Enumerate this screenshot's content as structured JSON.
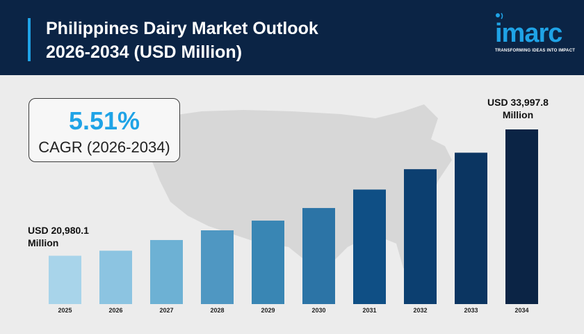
{
  "header": {
    "title_line1": "Philippines Dairy Market Outlook",
    "title_line2": "2026-2034 (USD Million)"
  },
  "logo": {
    "name": "imarc",
    "tagline": "TRANSFORMING IDEAS INTO IMPACT"
  },
  "cagr": {
    "value": "5.51%",
    "label": "CAGR (2026-2034)"
  },
  "annotations": {
    "first_line1": "USD 20,980.1",
    "first_line2": "Million",
    "last_line1": "USD 33,997.8",
    "last_line2": "Million"
  },
  "colors": {
    "header_bg": "#0b2445",
    "accent": "#1fa3e6",
    "bar_colors": [
      "#a8d4ea",
      "#8cc4e1",
      "#6db1d4",
      "#4f97c2",
      "#3986b4",
      "#2c74a6",
      "#0f4f85",
      "#0c3f70",
      "#0b3561",
      "#0b2445"
    ]
  },
  "chart_data": {
    "type": "bar",
    "title": "Philippines Dairy Market Outlook 2026-2034 (USD Million)",
    "categories": [
      "2025",
      "2026",
      "2027",
      "2028",
      "2029",
      "2030",
      "2031",
      "2032",
      "2033",
      "2034"
    ],
    "values": [
      20980.1,
      21500,
      22600,
      23600,
      24600,
      25900,
      27800,
      29900,
      31600,
      33997.8
    ],
    "xlabel": "",
    "ylabel": "",
    "ylim": [
      16000,
      34800
    ],
    "grid": false,
    "legend": "none"
  }
}
